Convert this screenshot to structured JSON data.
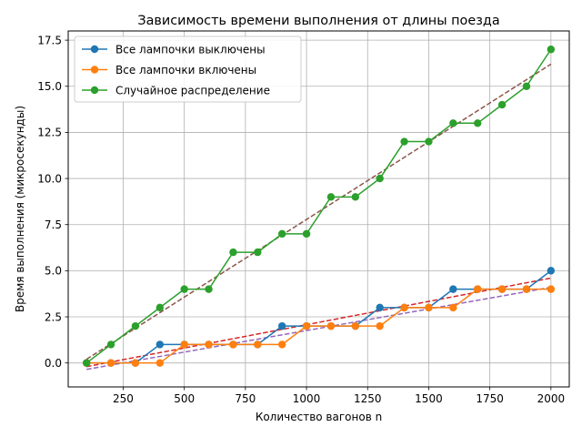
{
  "chart_data": {
    "type": "line",
    "title": "Зависимость времени выполнения от длины поезда",
    "xlabel": "Количество вагонов n",
    "ylabel": "Время выполнения (микросекунды)",
    "xlim": [
      25,
      2075
    ],
    "ylim": [
      -1.3,
      18.0
    ],
    "xticks": [
      250,
      500,
      750,
      1000,
      1250,
      1500,
      1750,
      2000
    ],
    "yticks": [
      0.0,
      2.5,
      5.0,
      7.5,
      10.0,
      12.5,
      15.0,
      17.5
    ],
    "xtick_labels": [
      "250",
      "500",
      "750",
      "1000",
      "1250",
      "1500",
      "1750",
      "2000"
    ],
    "ytick_labels": [
      "0.0",
      "2.5",
      "5.0",
      "7.5",
      "10.0",
      "12.5",
      "15.0",
      "17.5"
    ],
    "grid": true,
    "legend_position": "top-left",
    "x": [
      100,
      200,
      300,
      400,
      500,
      600,
      700,
      800,
      900,
      1000,
      1100,
      1200,
      1300,
      1400,
      1500,
      1600,
      1700,
      1800,
      1900,
      2000
    ],
    "series": [
      {
        "name": "Все лампочки выключены",
        "color": "#1f77b4",
        "values": [
          0,
          0,
          0,
          1,
          1,
          1,
          1,
          1,
          2,
          2,
          2,
          2,
          3,
          3,
          3,
          4,
          4,
          4,
          4,
          5
        ]
      },
      {
        "name": "Все лампочки включены",
        "color": "#ff7f0e",
        "values": [
          0,
          0,
          0,
          0,
          1,
          1,
          1,
          1,
          1,
          2,
          2,
          2,
          2,
          3,
          3,
          3,
          4,
          4,
          4,
          4
        ]
      },
      {
        "name": "Случайное распределение",
        "color": "#2ca02c",
        "values": [
          0,
          1,
          2,
          3,
          4,
          4,
          6,
          6,
          7,
          7,
          9,
          9,
          10,
          12,
          12,
          13,
          13,
          14,
          15,
          17
        ]
      }
    ],
    "trend_lines": [
      {
        "color": "#d62728",
        "x": [
          100,
          2000
        ],
        "y": [
          -0.2,
          4.6
        ]
      },
      {
        "color": "#9467bd",
        "x": [
          100,
          2000
        ],
        "y": [
          -0.35,
          4.1
        ]
      },
      {
        "color": "#8c564b",
        "x": [
          100,
          2000
        ],
        "y": [
          0.2,
          16.2
        ]
      }
    ]
  }
}
